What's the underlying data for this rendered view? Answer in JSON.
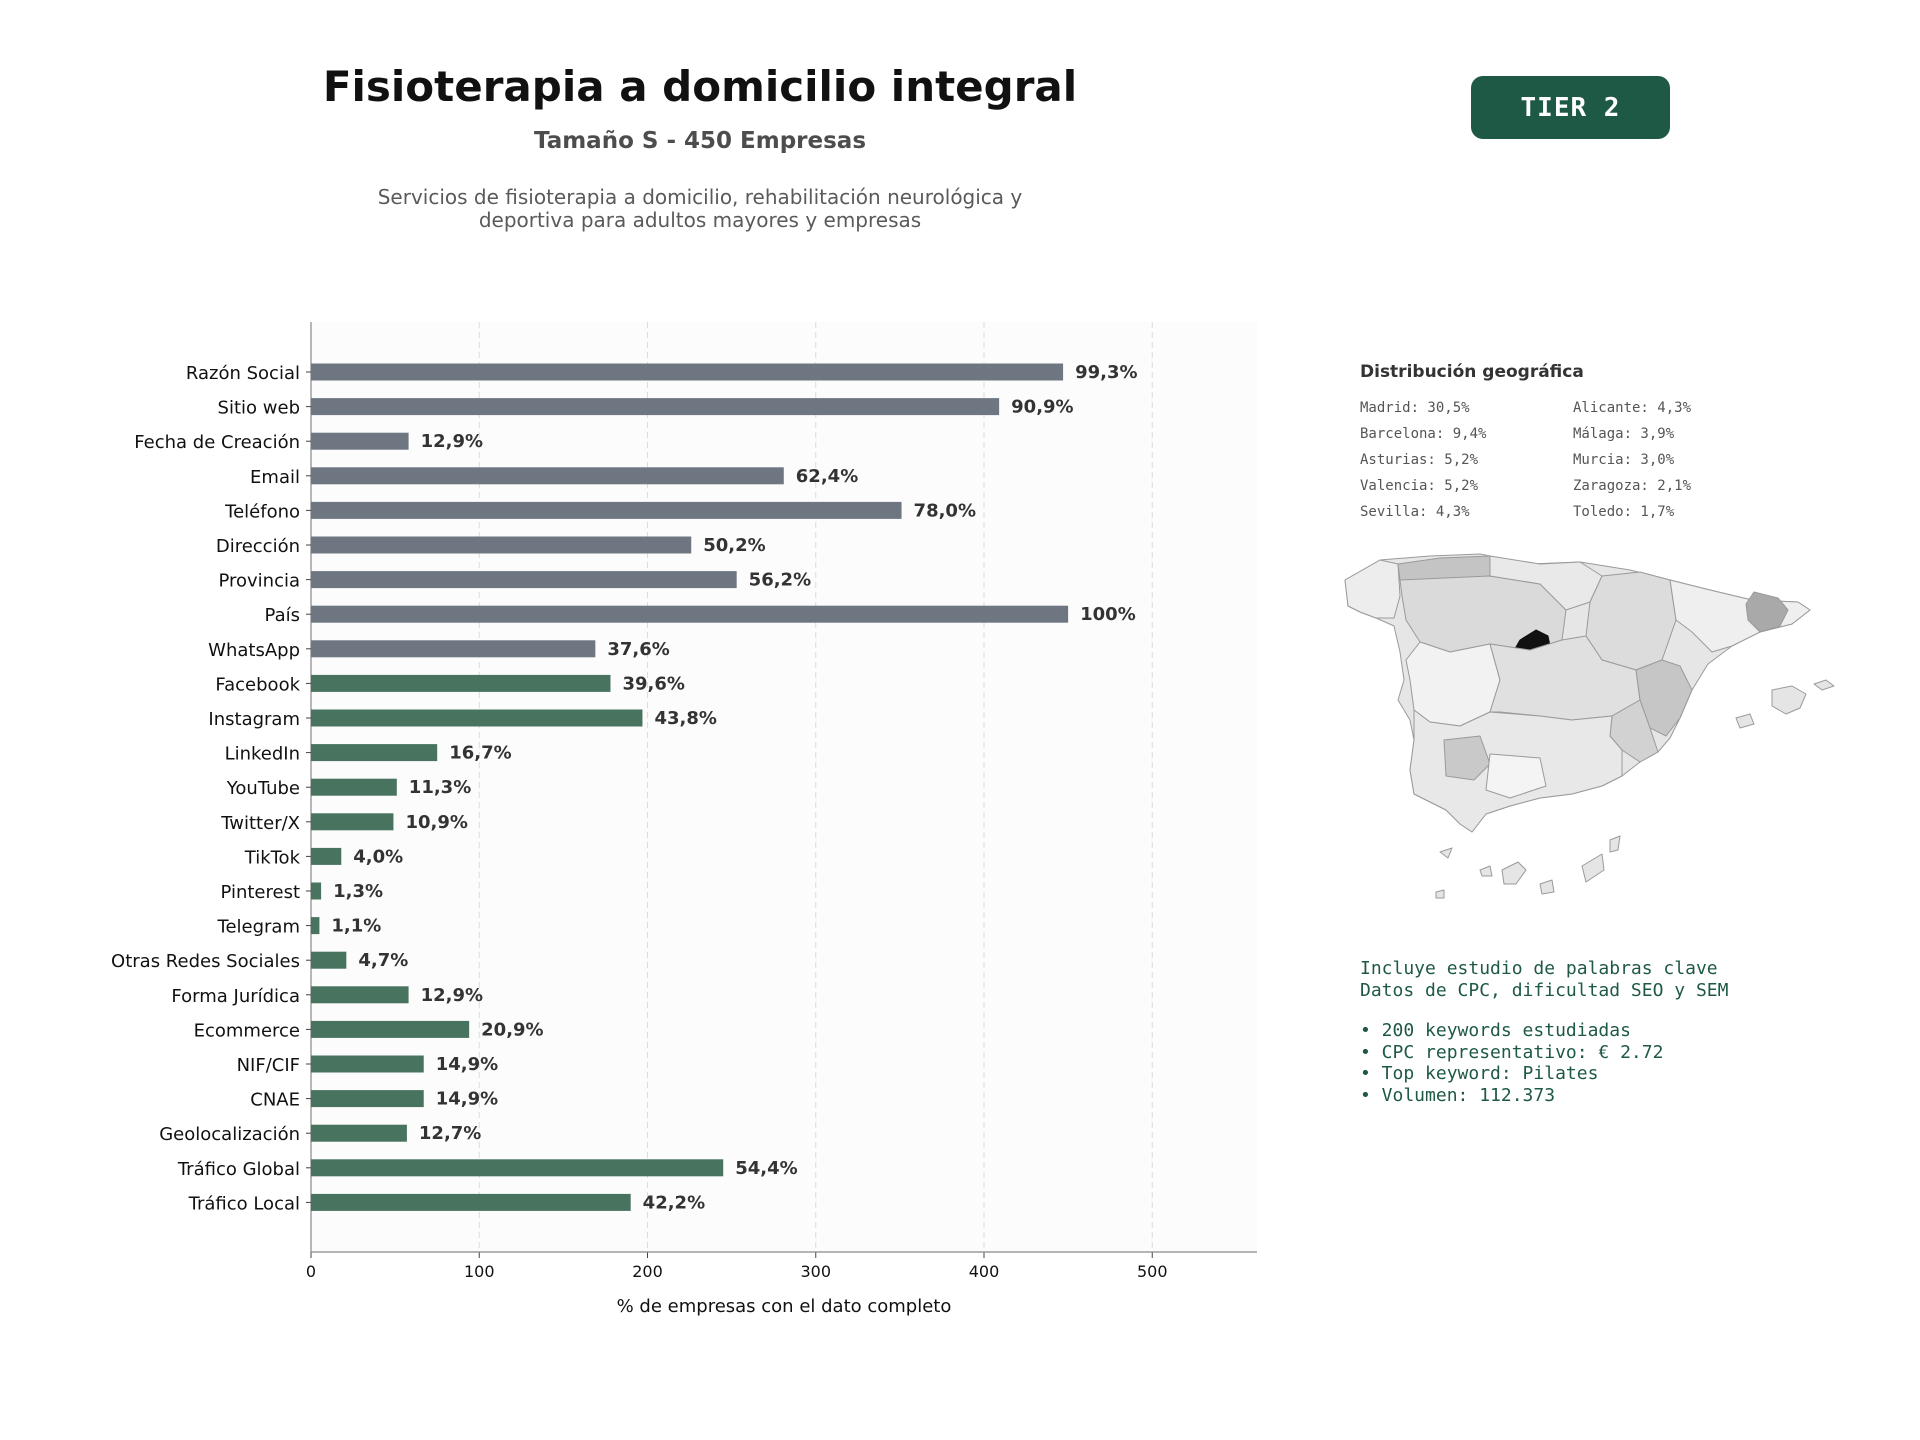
{
  "header": {
    "title": "Fisioterapia a domicilio integral",
    "subtitle": "Tamaño S - 450 Empresas",
    "description_line1": "Servicios de fisioterapia a domicilio, rehabilitación neurológica y",
    "description_line2": "deportiva para adultos mayores y empresas",
    "badge": "TIER 2"
  },
  "colors": {
    "basic_bar": "#6e7781",
    "social_bar": "#47735f",
    "badge_bg": "#1e5945",
    "map_highlight": "#111111",
    "plot_bg": "#fcfcfc"
  },
  "chart_data": {
    "type": "bar",
    "orientation": "horizontal",
    "xlabel": "% de empresas con el dato completo",
    "xlim": [
      0,
      563
    ],
    "xticks": [
      0,
      100,
      200,
      300,
      400,
      500
    ],
    "grid": true,
    "categories": [
      "Razón Social",
      "Sitio web",
      "Fecha de Creación",
      "Email",
      "Teléfono",
      "Dirección",
      "Provincia",
      "País",
      "WhatsApp",
      "Facebook",
      "Instagram",
      "LinkedIn",
      "YouTube",
      "Twitter/X",
      "TikTok",
      "Pinterest",
      "Telegram",
      "Otras Redes Sociales",
      "Forma Jurídica",
      "Ecommerce",
      "NIF/CIF",
      "CNAE",
      "Geolocalización",
      "Tráfico Global",
      "Tráfico Local"
    ],
    "values": [
      447,
      409,
      58,
      281,
      351,
      226,
      253,
      450,
      169,
      178,
      197,
      75,
      51,
      49,
      18,
      6,
      5,
      21,
      58,
      94,
      67,
      67,
      57,
      245,
      190
    ],
    "labels": [
      "99,3%",
      "90,9%",
      "12,9%",
      "62,4%",
      "78,0%",
      "50,2%",
      "56,2%",
      "100%",
      "37,6%",
      "39,6%",
      "43,8%",
      "16,7%",
      "11,3%",
      "10,9%",
      "4,0%",
      "1,3%",
      "1,1%",
      "4,7%",
      "12,9%",
      "20,9%",
      "14,9%",
      "14,9%",
      "12,7%",
      "54,4%",
      "42,2%"
    ],
    "groups": [
      "basic",
      "basic",
      "basic",
      "basic",
      "basic",
      "basic",
      "basic",
      "basic",
      "basic",
      "social",
      "social",
      "social",
      "social",
      "social",
      "social",
      "social",
      "social",
      "social",
      "social",
      "social",
      "social",
      "social",
      "social",
      "social",
      "social"
    ]
  },
  "geo": {
    "title": "Distribución geográfica",
    "items": [
      "Madrid: 30,5%",
      "Alicante: 4,3%",
      "Barcelona: 9,4%",
      "Málaga: 3,9%",
      "Asturias: 5,2%",
      "Murcia: 3,0%",
      "Valencia: 5,2%",
      "Zaragoza: 2,1%",
      "Sevilla: 4,3%",
      "Toledo: 1,7%"
    ]
  },
  "keywords": {
    "line1": "Incluye estudio de palabras clave",
    "line2": "Datos de CPC, dificultad SEO y SEM",
    "bullets": [
      "• 200 keywords estudiadas",
      "• CPC representativo: € 2.72",
      "• Top keyword: Pilates",
      "• Volumen: 112.373"
    ]
  }
}
